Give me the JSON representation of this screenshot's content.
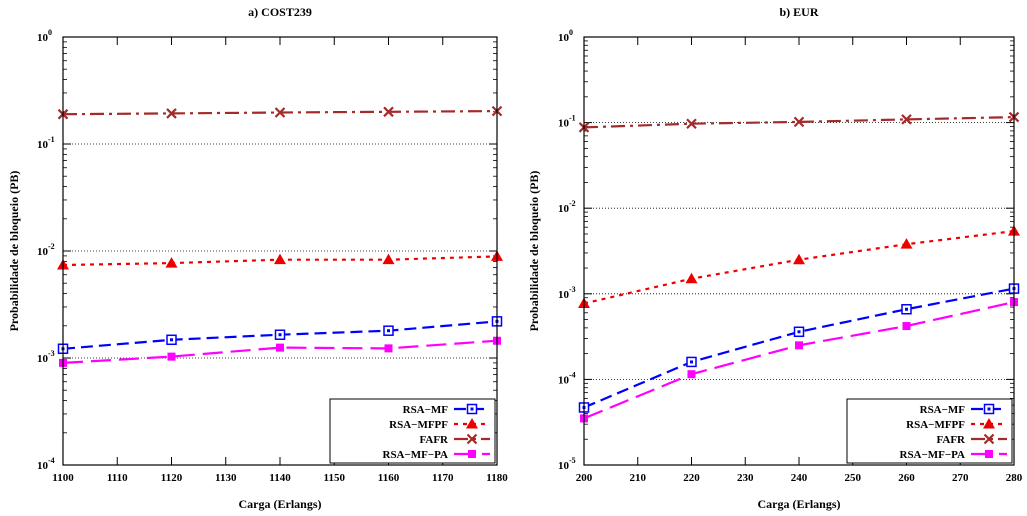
{
  "chart_data": [
    {
      "type": "line",
      "title": "a) COST239",
      "xlabel": "Carga (Erlangs)",
      "ylabel": "Probabilidade de bloqueio (PB)",
      "yscale": "log",
      "xlim": [
        1100,
        1180
      ],
      "ylim": [
        0.0001,
        1
      ],
      "x_ticks": [
        "1100",
        "1110",
        "1120",
        "1130",
        "1140",
        "1150",
        "1160",
        "1170",
        "1180"
      ],
      "y_ticks": [
        {
          "base": "10",
          "exp": "0"
        },
        {
          "base": "10",
          "exp": "-1"
        },
        {
          "base": "10",
          "exp": "-2"
        },
        {
          "base": "10",
          "exp": "-3"
        },
        {
          "base": "10",
          "exp": "-4"
        }
      ],
      "grid": "horizontal dotted at decades",
      "legend_position": "bottom-right",
      "x": [
        1100,
        1120,
        1140,
        1160,
        1180
      ],
      "series": [
        {
          "name": "RSA−MF",
          "color": "#0000ff",
          "marker": "square-open",
          "values": [
            0.00122,
            0.00148,
            0.00165,
            0.0018,
            0.0022
          ]
        },
        {
          "name": "RSA−MFPF",
          "color": "#ee0000",
          "marker": "triangle",
          "values": [
            0.0074,
            0.0077,
            0.0083,
            0.0083,
            0.0089
          ]
        },
        {
          "name": "FAFR",
          "color": "#a52a2a",
          "marker": "x",
          "values": [
            0.19,
            0.193,
            0.197,
            0.2,
            0.203
          ]
        },
        {
          "name": "RSA−MF−PA",
          "color": "#ff00ff",
          "marker": "square-filled",
          "values": [
            0.0009,
            0.00103,
            0.00125,
            0.00123,
            0.00145
          ]
        }
      ]
    },
    {
      "type": "line",
      "title": "b) EUR",
      "xlabel": "Carga (Erlangs)",
      "ylabel": "Probabilidade de bloqueio (PB)",
      "yscale": "log",
      "xlim": [
        200,
        280
      ],
      "ylim": [
        1e-05,
        1
      ],
      "x_ticks": [
        "200",
        "210",
        "220",
        "230",
        "240",
        "250",
        "260",
        "270",
        "280"
      ],
      "y_ticks": [
        {
          "base": "10",
          "exp": "0"
        },
        {
          "base": "10",
          "exp": "-1"
        },
        {
          "base": "10",
          "exp": "-2"
        },
        {
          "base": "10",
          "exp": "-3"
        },
        {
          "base": "10",
          "exp": "-4"
        },
        {
          "base": "10",
          "exp": "-5"
        }
      ],
      "grid": "horizontal dotted at decades",
      "legend_position": "bottom-right",
      "x": [
        200,
        220,
        240,
        260,
        280
      ],
      "series": [
        {
          "name": "RSA−MF",
          "color": "#0000ff",
          "marker": "square-open",
          "values": [
            4.7e-05,
            0.00016,
            0.00036,
            0.00066,
            0.00115
          ]
        },
        {
          "name": "RSA−MFPF",
          "color": "#ee0000",
          "marker": "triangle",
          "values": [
            0.00077,
            0.0015,
            0.0025,
            0.0038,
            0.0054
          ]
        },
        {
          "name": "FAFR",
          "color": "#a52a2a",
          "marker": "x",
          "values": [
            0.088,
            0.097,
            0.102,
            0.109,
            0.116
          ]
        },
        {
          "name": "RSA−MF−PA",
          "color": "#ff00ff",
          "marker": "square-filled",
          "values": [
            3.5e-05,
            0.000115,
            0.00025,
            0.00042,
            0.0008
          ]
        }
      ]
    }
  ]
}
